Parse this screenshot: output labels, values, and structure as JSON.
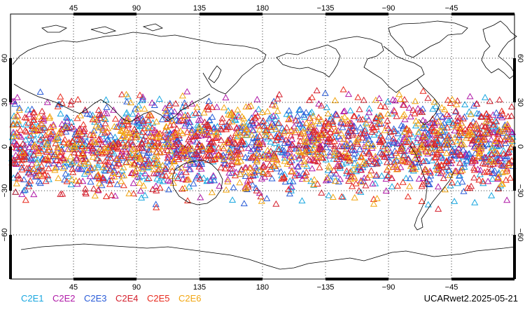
{
  "map": {
    "lon_ticks": [
      "45",
      "90",
      "135",
      "180",
      "−135",
      "−90",
      "−45"
    ],
    "lon_values": [
      45,
      90,
      135,
      180,
      225,
      270,
      315
    ],
    "lat_ticks": [
      "60",
      "30",
      "0",
      "−30",
      "−60"
    ],
    "lat_values": [
      60,
      30,
      0,
      -30,
      -60
    ],
    "lon_range": [
      0,
      360
    ],
    "lat_range": [
      -90,
      90
    ],
    "lat_coverage": [
      -45,
      45
    ],
    "grid": "dotted",
    "marker": "open-triangle"
  },
  "legend": {
    "items": [
      {
        "label": "C2E1",
        "color": "#1aa7e0"
      },
      {
        "label": "C2E2",
        "color": "#b01aa8"
      },
      {
        "label": "C2E3",
        "color": "#2a5cd8"
      },
      {
        "label": "C2E4",
        "color": "#d4202e"
      },
      {
        "label": "C2E5",
        "color": "#e82a1e"
      },
      {
        "label": "C2E6",
        "color": "#f2a612"
      }
    ]
  },
  "footer": {
    "label": "UCARwet2.2025-05-21"
  }
}
